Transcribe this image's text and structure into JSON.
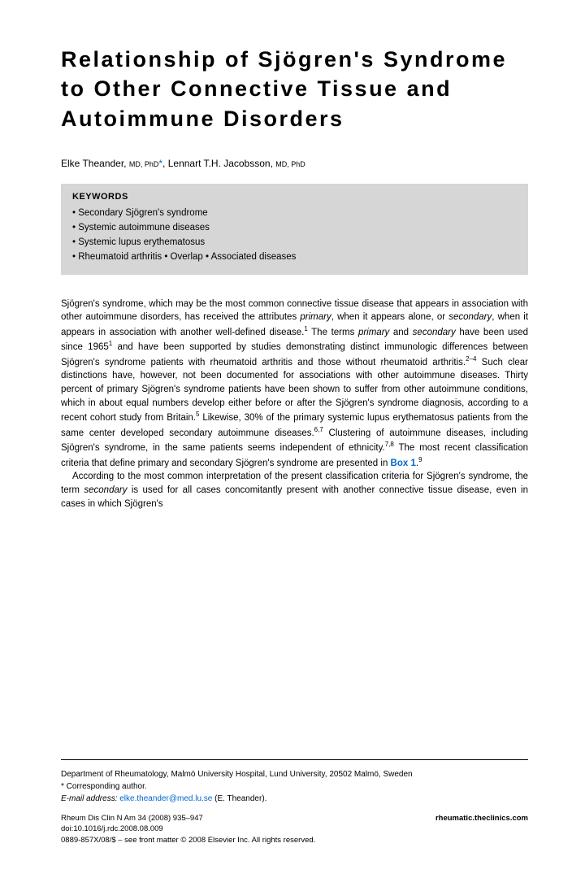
{
  "title": "Relationship of Sjögren's Syndrome to Other Connective Tissue and Autoimmune Disorders",
  "authors": {
    "author1_name": "Elke Theander,",
    "author1_cred": "MD, PhD",
    "author2_name": ", Lennart T.H. Jacobsson,",
    "author2_cred": "MD, PhD"
  },
  "keywords": {
    "header": "KEYWORDS",
    "line1": "• Secondary Sjögren's syndrome",
    "line2": "• Systemic autoimmune diseases",
    "line3": "• Systemic lupus erythematosus",
    "line4": "• Rheumatoid arthritis • Overlap • Associated diseases"
  },
  "body": {
    "p1_a": "Sjögren's syndrome, which may be the most common connective tissue disease that appears in association with other autoimmune disorders, has received the attributes ",
    "p1_primary": "primary",
    "p1_b": ", when it appears alone, or ",
    "p1_secondary": "secondary",
    "p1_c": ", when it appears in association with another well-defined disease.",
    "p1_sup1": "1",
    "p1_d": " The terms ",
    "p1_primary2": "primary",
    "p1_e": " and ",
    "p1_secondary2": "secondary",
    "p1_f": " have been used since 1965",
    "p1_sup2": "1",
    "p1_g": " and have been supported by studies demonstrating distinct immunologic differences between Sjögren's syndrome patients with rheumatoid arthritis and those without rheumatoid arthritis.",
    "p1_sup3": "2–4",
    "p1_h": " Such clear distinctions have, however, not been documented for associations with other autoimmune diseases. Thirty percent of primary Sjögren's syndrome patients have been shown to suffer from other autoimmune conditions, which in about equal numbers develop either before or after the Sjögren's syndrome diagnosis, according to a recent cohort study from Britain.",
    "p1_sup4": "5",
    "p1_i": " Likewise, 30% of the primary systemic lupus erythematosus patients from the same center developed secondary autoimmune diseases.",
    "p1_sup5": "6,7",
    "p1_j": " Clustering of autoimmune diseases, including Sjögren's syndrome, in the same patients seems independent of ethnicity.",
    "p1_sup6": "7,8",
    "p1_k": " The most recent classification criteria that define primary and secondary Sjögren's syndrome are presented in ",
    "p1_box": "Box 1",
    "p1_l": ".",
    "p1_sup7": "9",
    "p2_a": "According to the most common interpretation of the present classification criteria for Sjögren's syndrome, the term ",
    "p2_secondary": "secondary",
    "p2_b": " is used for all cases concomitantly present with another connective tissue disease, even in cases in which Sjögren's"
  },
  "footer": {
    "affil": "Department of Rheumatology, Malmö University Hospital, Lund University, 20502 Malmö, Sweden",
    "corresp": "* Corresponding author.",
    "email_label": "E-mail address:",
    "email": "elke.theander@med.lu.se",
    "email_name": "(E. Theander).",
    "journal": "Rheum Dis Clin N Am 34 (2008) 935–947",
    "doi": "doi:10.1016/j.rdc.2008.08.009",
    "issn": "0889-857X/08/$ – see front matter © 2008 Elsevier Inc. All rights reserved.",
    "website": "rheumatic.theclinics.com"
  },
  "styling": {
    "title_fontsize": 27,
    "body_fontsize": 11.5,
    "keywords_bg": "#d6d6d6",
    "link_color": "#0066cc",
    "text_color": "#000000",
    "background": "#ffffff"
  }
}
